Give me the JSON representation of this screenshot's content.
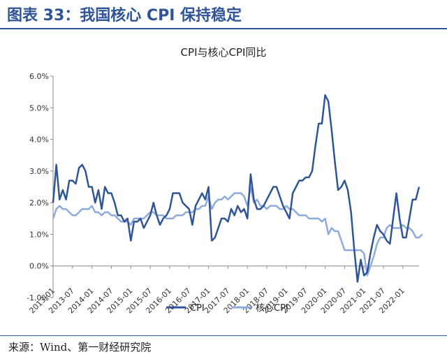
{
  "header": {
    "title": "图表 33：我国核心 CPI 保持稳定"
  },
  "footer": {
    "source": "来源：Wind、第一财经研究院"
  },
  "colors": {
    "header": "#2f5597",
    "cpi": "#2f5597",
    "core_cpi": "#8faadc"
  },
  "chart_data": {
    "type": "line",
    "title": "CPI与核心CPI同比",
    "xlabel": "",
    "ylabel": "",
    "ylim": [
      -1.0,
      6.0
    ],
    "y_ticks": [
      "-1.0%",
      "0.0%",
      "1.0%",
      "2.0%",
      "3.0%",
      "4.0%",
      "5.0%",
      "6.0%"
    ],
    "x_ticks": [
      "2013-01",
      "2013-07",
      "2014-01",
      "2014-07",
      "2015-01",
      "2015-07",
      "2016-01",
      "2016-07",
      "2017-01",
      "2017-07",
      "2018-01",
      "2018-07",
      "2019-01",
      "2019-07",
      "2020-01",
      "2020-07",
      "2021-01",
      "2021-07",
      "2022-01"
    ],
    "legend_position": "bottom",
    "x_start": "2013-01",
    "series": [
      {
        "name": "CPI",
        "values": [
          2.0,
          3.2,
          2.1,
          2.4,
          2.1,
          2.7,
          2.7,
          2.6,
          3.1,
          3.2,
          3.0,
          2.5,
          2.5,
          2.0,
          2.4,
          1.8,
          2.5,
          2.3,
          2.3,
          2.0,
          1.6,
          1.6,
          1.4,
          1.5,
          0.8,
          1.4,
          1.4,
          1.5,
          1.2,
          1.4,
          1.6,
          2.0,
          1.6,
          1.3,
          1.5,
          1.6,
          1.8,
          2.3,
          2.3,
          2.3,
          2.0,
          1.9,
          1.8,
          1.3,
          1.9,
          2.1,
          2.3,
          2.1,
          2.5,
          0.8,
          0.9,
          1.2,
          1.5,
          1.5,
          1.4,
          1.8,
          1.6,
          1.9,
          1.7,
          1.8,
          1.5,
          2.9,
          2.1,
          1.8,
          1.8,
          1.9,
          2.1,
          2.3,
          2.5,
          2.5,
          2.2,
          1.9,
          1.7,
          1.5,
          2.3,
          2.5,
          2.7,
          2.7,
          2.8,
          2.8,
          3.0,
          3.8,
          4.5,
          4.5,
          5.4,
          5.2,
          4.3,
          3.3,
          2.4,
          2.5,
          2.7,
          2.4,
          1.7,
          0.5,
          -0.5,
          0.2,
          -0.3,
          -0.2,
          0.4,
          0.9,
          1.3,
          1.1,
          1.0,
          0.8,
          0.7,
          1.5,
          2.3,
          1.5,
          0.9,
          0.9,
          1.5,
          2.1,
          2.1,
          2.5
        ]
      },
      {
        "name": "核心CPI",
        "values": [
          1.5,
          1.8,
          1.9,
          1.8,
          1.8,
          1.7,
          1.6,
          1.6,
          1.7,
          1.8,
          1.8,
          1.8,
          1.9,
          1.7,
          1.7,
          1.6,
          1.7,
          1.7,
          1.6,
          1.6,
          1.5,
          1.4,
          1.4,
          1.4,
          1.3,
          1.5,
          1.5,
          1.5,
          1.5,
          1.6,
          1.7,
          1.7,
          1.6,
          1.6,
          1.6,
          1.5,
          1.5,
          1.5,
          1.6,
          1.6,
          1.6,
          1.7,
          1.7,
          1.7,
          1.8,
          1.8,
          1.9,
          1.9,
          2.2,
          1.8,
          2.0,
          2.1,
          2.1,
          2.2,
          2.1,
          2.2,
          2.3,
          2.3,
          2.3,
          2.2,
          1.9,
          2.5,
          2.0,
          2.1,
          1.9,
          1.9,
          1.8,
          1.9,
          1.9,
          1.9,
          1.8,
          1.8,
          1.9,
          1.8,
          1.8,
          1.7,
          1.6,
          1.6,
          1.6,
          1.5,
          1.5,
          1.5,
          1.5,
          1.4,
          1.5,
          1.0,
          1.2,
          1.1,
          1.1,
          0.8,
          0.5,
          0.5,
          0.5,
          0.5,
          0.5,
          0.5,
          0.4,
          -0.3,
          0.0,
          0.3,
          0.7,
          0.9,
          0.9,
          1.2,
          1.3,
          1.2,
          1.2,
          1.2,
          1.3,
          1.2,
          1.2,
          1.1,
          0.9,
          0.9,
          1.0
        ]
      }
    ]
  }
}
